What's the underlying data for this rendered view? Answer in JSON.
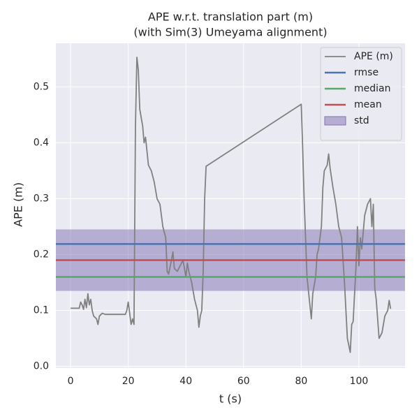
{
  "chart_data": {
    "type": "line",
    "title": "APE w.r.t. translation part (m)",
    "subtitle": "(with Sim(3) Umeyama alignment)",
    "xlabel": "t (s)",
    "ylabel": "APE (m)",
    "xlim": [
      -5.1,
      116
    ],
    "ylim": [
      -0.003,
      0.578
    ],
    "xticks": [
      0,
      20,
      40,
      60,
      80,
      100
    ],
    "yticks": [
      {
        "value": 0,
        "label": "0.0"
      },
      0.1,
      0.2,
      0.3,
      0.4,
      0.5
    ],
    "grid": true,
    "legend": "upper right",
    "x": [
      0,
      2,
      3,
      3.5,
      4,
      4.5,
      5,
      5.5,
      6,
      6.5,
      7,
      7.5,
      8,
      9,
      9.5,
      10,
      11,
      12,
      15,
      19,
      19.5,
      20,
      20.5,
      21,
      21.5,
      22,
      22.5,
      23,
      23.5,
      24,
      25,
      25.5,
      26,
      27,
      28,
      29,
      30,
      31,
      32,
      33,
      33.5,
      34,
      35,
      35.5,
      36,
      37,
      38,
      39,
      40,
      40.5,
      41,
      42,
      43,
      44,
      44.5,
      45,
      45.5,
      46,
      46.5,
      47,
      80,
      80.5,
      81,
      82,
      83,
      83.5,
      84,
      85,
      85.5,
      86,
      87,
      87.5,
      88,
      89,
      89.5,
      90,
      91,
      92,
      93,
      94,
      95,
      96,
      97,
      97.5,
      98,
      99,
      99.5,
      100,
      100.5,
      101,
      102,
      103,
      104,
      104.5,
      105,
      105.5,
      106,
      107,
      108,
      109,
      110,
      110.5,
      111
    ],
    "series": [
      {
        "name": "APE (m)",
        "color": "#808080",
        "values": [
          0.104,
          0.104,
          0.104,
          0.115,
          0.11,
          0.102,
          0.12,
          0.105,
          0.13,
          0.11,
          0.12,
          0.1,
          0.09,
          0.085,
          0.075,
          0.09,
          0.095,
          0.093,
          0.093,
          0.093,
          0.1,
          0.115,
          0.095,
          0.075,
          0.085,
          0.075,
          0.43,
          0.553,
          0.53,
          0.46,
          0.43,
          0.4,
          0.41,
          0.36,
          0.35,
          0.33,
          0.3,
          0.29,
          0.25,
          0.23,
          0.17,
          0.165,
          0.19,
          0.205,
          0.175,
          0.17,
          0.18,
          0.19,
          0.16,
          0.185,
          0.17,
          0.15,
          0.12,
          0.1,
          0.07,
          0.09,
          0.1,
          0.17,
          0.3,
          0.358,
          0.469,
          0.39,
          0.3,
          0.16,
          0.11,
          0.085,
          0.13,
          0.16,
          0.2,
          0.21,
          0.25,
          0.32,
          0.35,
          0.36,
          0.38,
          0.355,
          0.32,
          0.29,
          0.25,
          0.23,
          0.15,
          0.05,
          0.025,
          0.075,
          0.08,
          0.18,
          0.25,
          0.18,
          0.23,
          0.21,
          0.27,
          0.29,
          0.3,
          0.25,
          0.29,
          0.14,
          0.12,
          0.05,
          0.06,
          0.09,
          0.1,
          0.118,
          0.103
        ]
      }
    ],
    "hlines": [
      {
        "name": "rmse",
        "color": "#4c72b0",
        "value": 0.219
      },
      {
        "name": "median",
        "color": "#55a868",
        "value": 0.16
      },
      {
        "name": "mean",
        "color": "#c44e52",
        "value": 0.19
      }
    ],
    "std": {
      "name": "std",
      "color": "#8172b2",
      "value": 0.055
    }
  }
}
